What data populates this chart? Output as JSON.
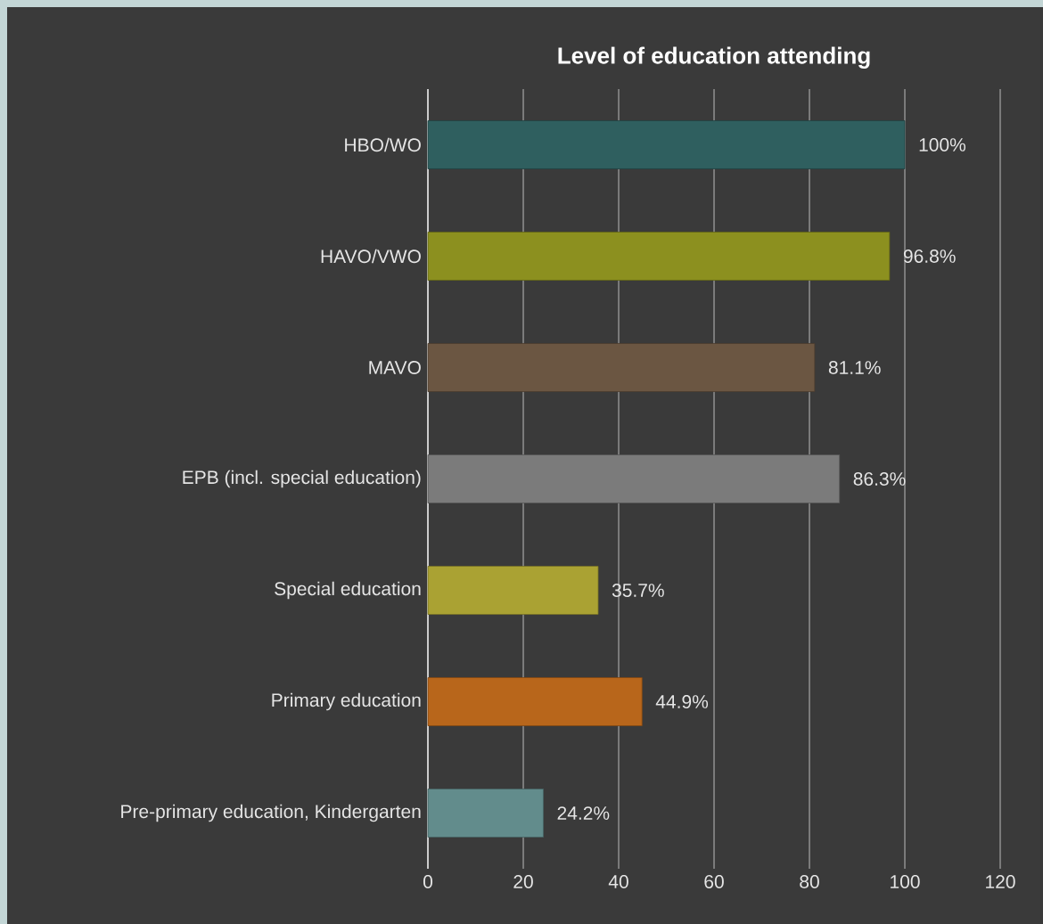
{
  "chart_data": {
    "type": "bar",
    "orientation": "horizontal",
    "title": "Level of education attending",
    "categories": [
      "HBO/WO",
      "HAVO/VWO",
      "MAVO",
      "EPB (incl. special education)",
      "Special education",
      "Primary education",
      "Pre-primary education, Kindergarten"
    ],
    "values": [
      100,
      96.8,
      81.1,
      86.3,
      35.7,
      44.9,
      24.2
    ],
    "value_labels": [
      "100%",
      "96.8%",
      "81.1%",
      "86.3%",
      "35.7%",
      "44.9%",
      "24.2%"
    ],
    "colors": [
      "#2f5f5f",
      "#8c901f",
      "#6b5642",
      "#7b7b7b",
      "#aaa233",
      "#b8661b",
      "#628c8c"
    ],
    "xlim": [
      0,
      120
    ],
    "xticks": [
      0,
      20,
      40,
      60,
      80,
      100,
      120
    ],
    "grid": "x"
  }
}
